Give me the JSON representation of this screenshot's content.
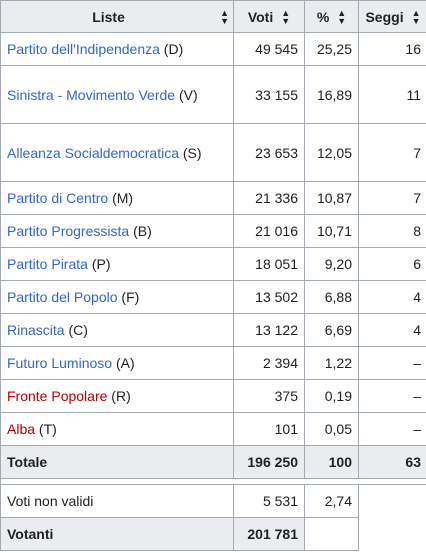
{
  "headers": {
    "liste": "Liste",
    "voti": "Voti",
    "pct": "%",
    "seggi": "Seggi"
  },
  "sort_icon": "sort-icon",
  "rows": [
    {
      "party": "Partito dell'Indipendenza",
      "abbr": "(D)",
      "voti": "49 545",
      "pct": "25,25",
      "seggi": "16"
    },
    {
      "party": "Sinistra - Movimento Verde",
      "abbr": "(V)",
      "voti": "33 155",
      "pct": "16,89",
      "seggi": "11"
    },
    {
      "party": "Alleanza Socialdemocratica",
      "abbr": "(S)",
      "voti": "23 653",
      "pct": "12,05",
      "seggi": "7"
    },
    {
      "party": "Partito di Centro",
      "abbr": "(M)",
      "voti": "21 336",
      "pct": "10,87",
      "seggi": "7"
    },
    {
      "party": "Partito Progressista",
      "abbr": "(B)",
      "voti": "21 016",
      "pct": "10,71",
      "seggi": "8"
    },
    {
      "party": "Partito Pirata",
      "abbr": "(P)",
      "voti": "18 051",
      "pct": "9,20",
      "seggi": "6"
    },
    {
      "party": "Partito del Popolo",
      "abbr": "(F)",
      "voti": "13 502",
      "pct": "6,88",
      "seggi": "4"
    },
    {
      "party": "Rinascita",
      "abbr": "(C)",
      "voti": "13 122",
      "pct": "6,69",
      "seggi": "4"
    },
    {
      "party": "Futuro Luminoso",
      "abbr": "(A)",
      "voti": "2 394",
      "pct": "1,22",
      "seggi": "–"
    },
    {
      "party": "Fronte Popolare",
      "abbr": "(R)",
      "voti": "375",
      "pct": "0,19",
      "seggi": "–"
    },
    {
      "party": "Alba",
      "abbr": "(T)",
      "voti": "101",
      "pct": "0,05",
      "seggi": "–"
    }
  ],
  "totale": {
    "label": "Totale",
    "voti": "196 250",
    "pct": "100",
    "seggi": "63"
  },
  "non_validi": {
    "label": "Voti non validi",
    "voti": "5 531",
    "pct": "2,74"
  },
  "votanti": {
    "label": "Votanti",
    "voti": "201 781"
  },
  "colors": {
    "link": "#3366cc",
    "redlink": "#ba0000",
    "header_bg": "#eaecf0",
    "border": "#a2a9b1"
  }
}
